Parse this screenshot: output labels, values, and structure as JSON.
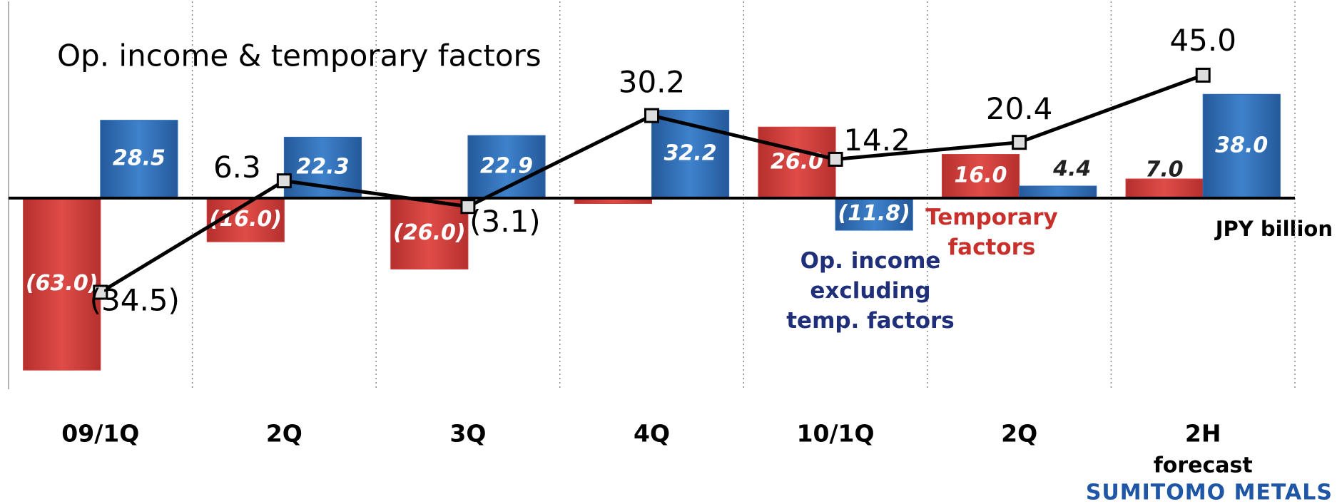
{
  "chart_data": {
    "type": "bar",
    "title": "Op. income & temporary factors",
    "unit_note": "JPY billion",
    "categories": [
      "09/1Q",
      "2Q",
      "3Q",
      "4Q",
      "10/1Q",
      "2Q",
      "2H"
    ],
    "forecast_note": "forecast",
    "ylim": [
      -70,
      72
    ],
    "grid": false,
    "series": [
      {
        "name": "Temporary factors",
        "type": "bar",
        "color": "#d0403c",
        "values": [
          -63.0,
          -16.0,
          -26.0,
          -2.0,
          26.0,
          16.0,
          7.0
        ],
        "value_labels": [
          "(63.0)",
          "(16.0)",
          "(26.0)",
          null,
          "26.0",
          "16.0",
          "7.0"
        ]
      },
      {
        "name": "Op. income excluding temp. factors",
        "type": "bar",
        "color": "#2f6db5",
        "values": [
          28.5,
          22.3,
          22.9,
          32.2,
          -11.8,
          4.4,
          38.0
        ],
        "value_labels": [
          "28.5",
          "22.3",
          "22.9",
          "32.2",
          "(11.8)",
          "4.4",
          "38.0"
        ]
      },
      {
        "type": "line",
        "color": "#000000",
        "values": [
          -34.5,
          6.3,
          -3.1,
          30.2,
          14.2,
          20.4,
          45.0
        ],
        "value_labels": [
          "(34.5)",
          "6.3",
          "(3.1)",
          "30.2",
          "14.2",
          "20.4",
          "45.0"
        ]
      }
    ],
    "logo": "SUMITOMO METALS"
  }
}
